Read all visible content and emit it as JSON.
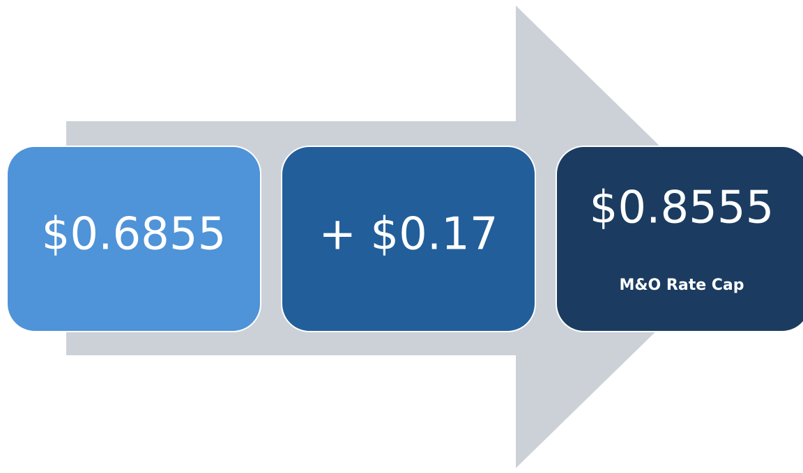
{
  "boxes": [
    {
      "value": "$0.6855"
    },
    {
      "value": "+ $0.17"
    },
    {
      "value": "$0.8555",
      "label": "M&O Rate Cap"
    }
  ]
}
